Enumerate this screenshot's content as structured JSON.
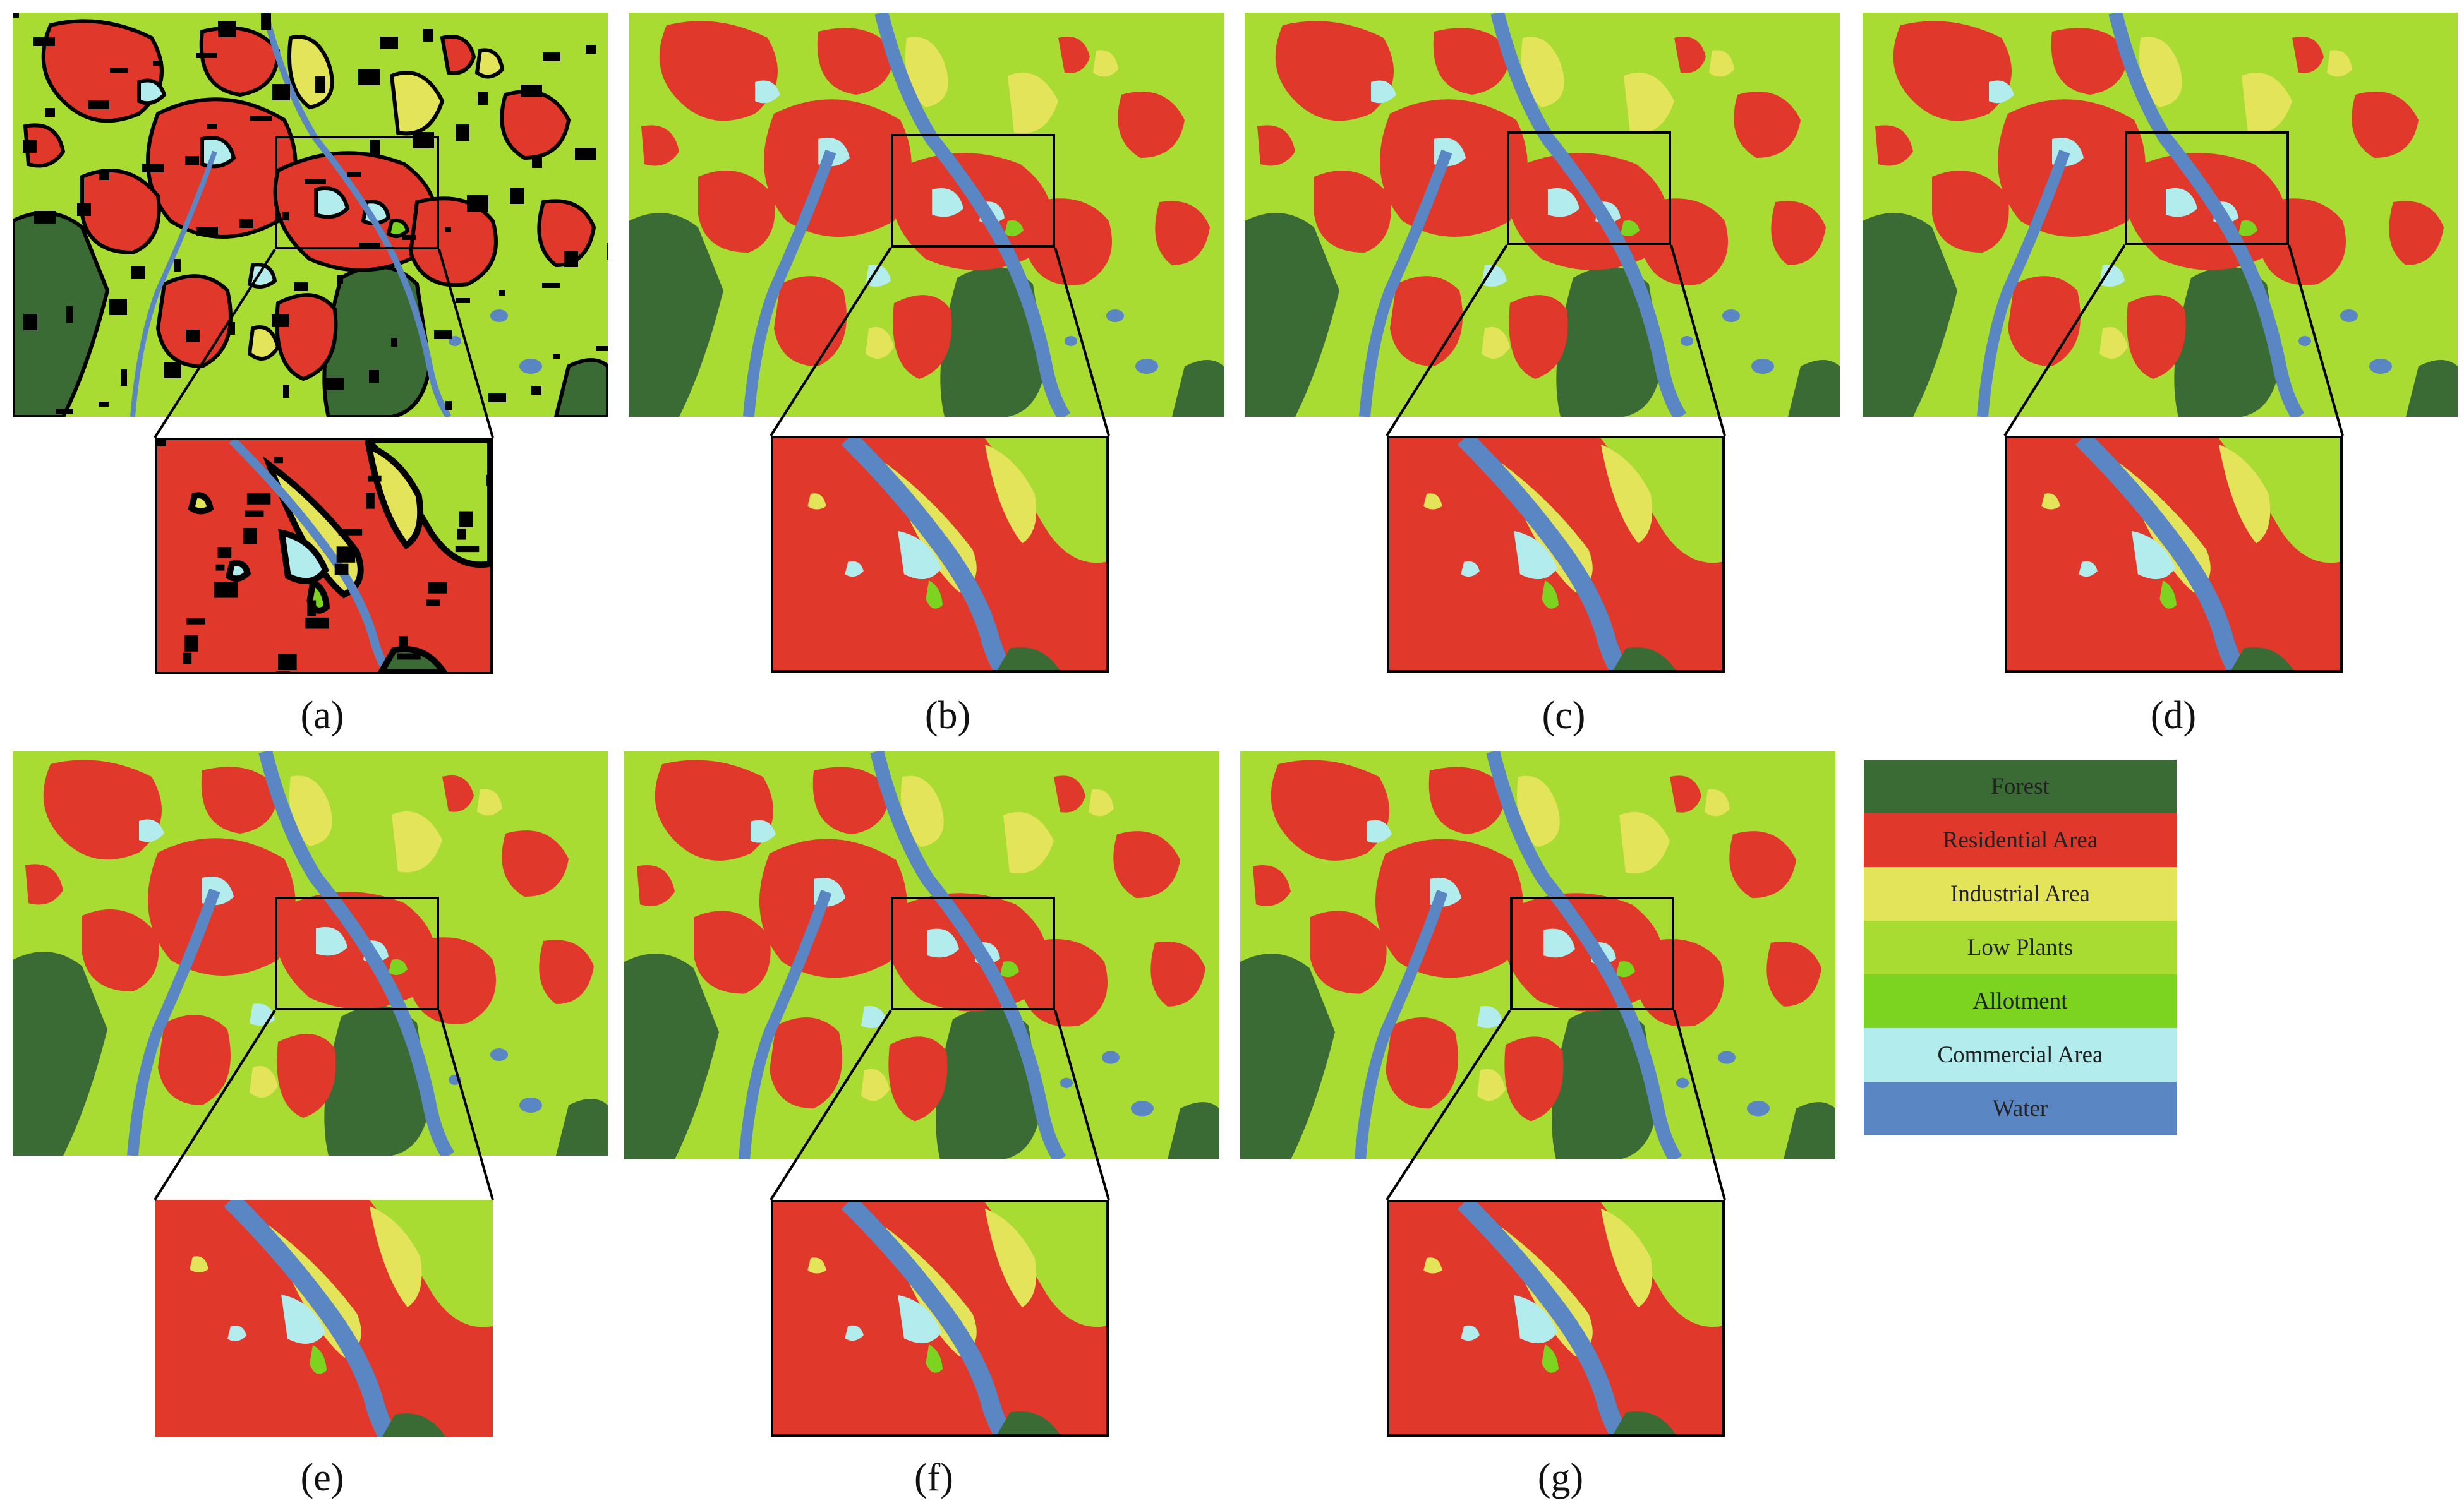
{
  "panels": [
    {
      "id": "a",
      "caption": "(a)"
    },
    {
      "id": "b",
      "caption": "(b)"
    },
    {
      "id": "c",
      "caption": "(c)"
    },
    {
      "id": "d",
      "caption": "(d)"
    },
    {
      "id": "e",
      "caption": "(e)"
    },
    {
      "id": "f",
      "caption": "(f)"
    },
    {
      "id": "g",
      "caption": "(g)"
    }
  ],
  "legend": {
    "items": [
      {
        "label": "Forest",
        "color": "#3a6b35"
      },
      {
        "label": "Residential Area",
        "color": "#e0382a"
      },
      {
        "label": "Industrial Area",
        "color": "#e4e45a"
      },
      {
        "label": "Low Plants",
        "color": "#a8dc32"
      },
      {
        "label": "Allotment",
        "color": "#7cd420"
      },
      {
        "label": "Commercial Area",
        "color": "#b2ecec"
      },
      {
        "label": "Water",
        "color": "#5a86c4"
      }
    ]
  },
  "boundary_color": "#000000"
}
